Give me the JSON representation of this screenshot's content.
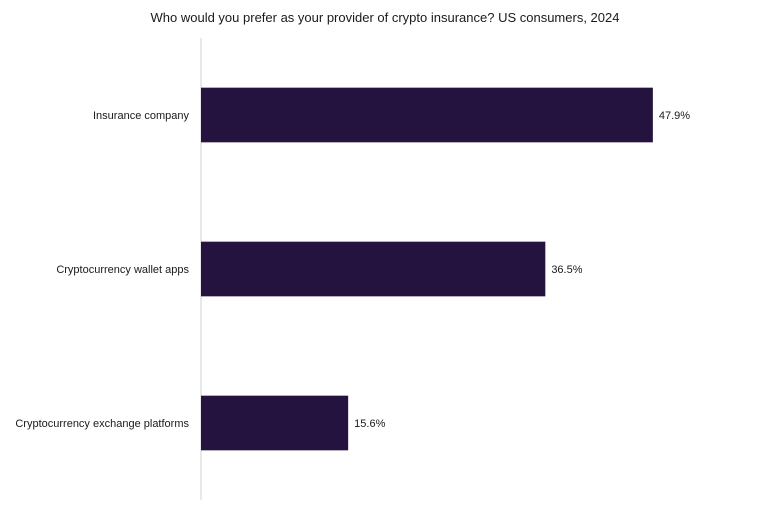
{
  "chart_data": {
    "type": "bar",
    "orientation": "horizontal",
    "title": "Who would you prefer as your provider of crypto insurance? US consumers, 2024",
    "xlabel": "",
    "ylabel": "",
    "categories": [
      "Insurance company",
      "Cryptocurrency wallet apps",
      "Cryptocurrency exchange platforms"
    ],
    "values": [
      47.9,
      36.5,
      15.6
    ],
    "value_labels": [
      "47.9%",
      "36.5%",
      "15.6%"
    ],
    "xlim": [
      0,
      60
    ],
    "unit": "%",
    "grid": false,
    "legend": "none",
    "bar_color": "#24123f",
    "axis_color": "#d0d0d0"
  }
}
